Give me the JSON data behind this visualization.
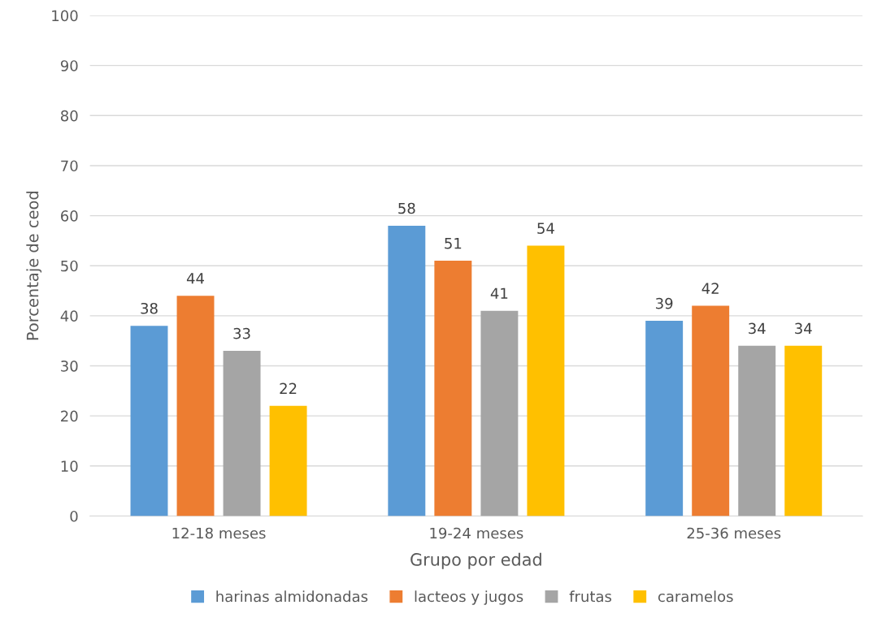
{
  "chart_data": {
    "type": "bar",
    "xlabel": "Grupo por edad",
    "ylabel": "Porcentaje de ceod",
    "categories": [
      "12-18 meses",
      "19-24 meses",
      "25-36 meses"
    ],
    "series": [
      {
        "name": "harinas almidonadas",
        "color": "#5b9bd5",
        "values": [
          38,
          58,
          39
        ]
      },
      {
        "name": "lacteos y jugos",
        "color": "#ed7d31",
        "values": [
          44,
          51,
          42
        ]
      },
      {
        "name": "frutas",
        "color": "#a5a5a5",
        "values": [
          33,
          41,
          34
        ]
      },
      {
        "name": "caramelos",
        "color": "#ffc000",
        "values": [
          22,
          54,
          34
        ]
      }
    ],
    "ylim": [
      0,
      100
    ],
    "yticks": [
      0,
      10,
      20,
      30,
      40,
      50,
      60,
      70,
      80,
      90,
      100
    ],
    "grid": "y",
    "legend": "bottom",
    "data_labels": true
  }
}
